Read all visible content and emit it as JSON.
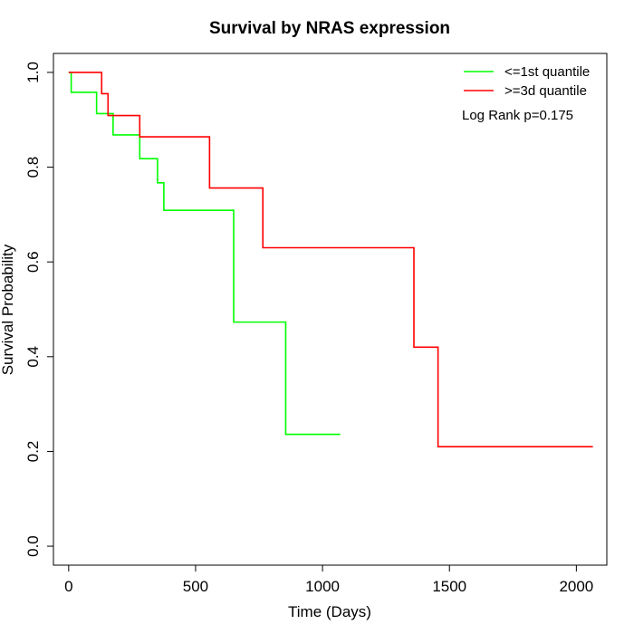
{
  "chart_data": {
    "type": "line",
    "title": "Survival by NRAS expression",
    "xlabel": "Time (Days)",
    "ylabel": "Survival Probability",
    "xlim": [
      -60,
      2120
    ],
    "ylim": [
      -0.04,
      1.04
    ],
    "x_ticks": [
      0,
      500,
      1000,
      1500,
      2000
    ],
    "y_ticks": [
      0.0,
      0.2,
      0.4,
      0.6,
      0.8,
      1.0
    ],
    "x_tick_labels": [
      "0",
      "500",
      "1000",
      "1500",
      "2000"
    ],
    "y_tick_labels": [
      "0.0",
      "0.2",
      "0.4",
      "0.6",
      "0.8",
      "1.0"
    ],
    "grid": false,
    "legend_position": "top-right",
    "annotation": "Log Rank p=0.175",
    "series": [
      {
        "name": "<=1st quantile",
        "color": "#00ff00",
        "step": true,
        "x": [
          0,
          10,
          110,
          175,
          280,
          350,
          375,
          650,
          855,
          1070
        ],
        "y": [
          1.0,
          0.958,
          0.913,
          0.868,
          0.818,
          0.767,
          0.709,
          0.473,
          0.236,
          0.236
        ]
      },
      {
        "name": ">=3d quantile",
        "color": "#ff0000",
        "step": true,
        "x": [
          0,
          130,
          155,
          280,
          555,
          765,
          1360,
          1455,
          2065
        ],
        "y": [
          1.0,
          0.955,
          0.909,
          0.864,
          0.756,
          0.63,
          0.42,
          0.21,
          0.21
        ]
      }
    ]
  }
}
